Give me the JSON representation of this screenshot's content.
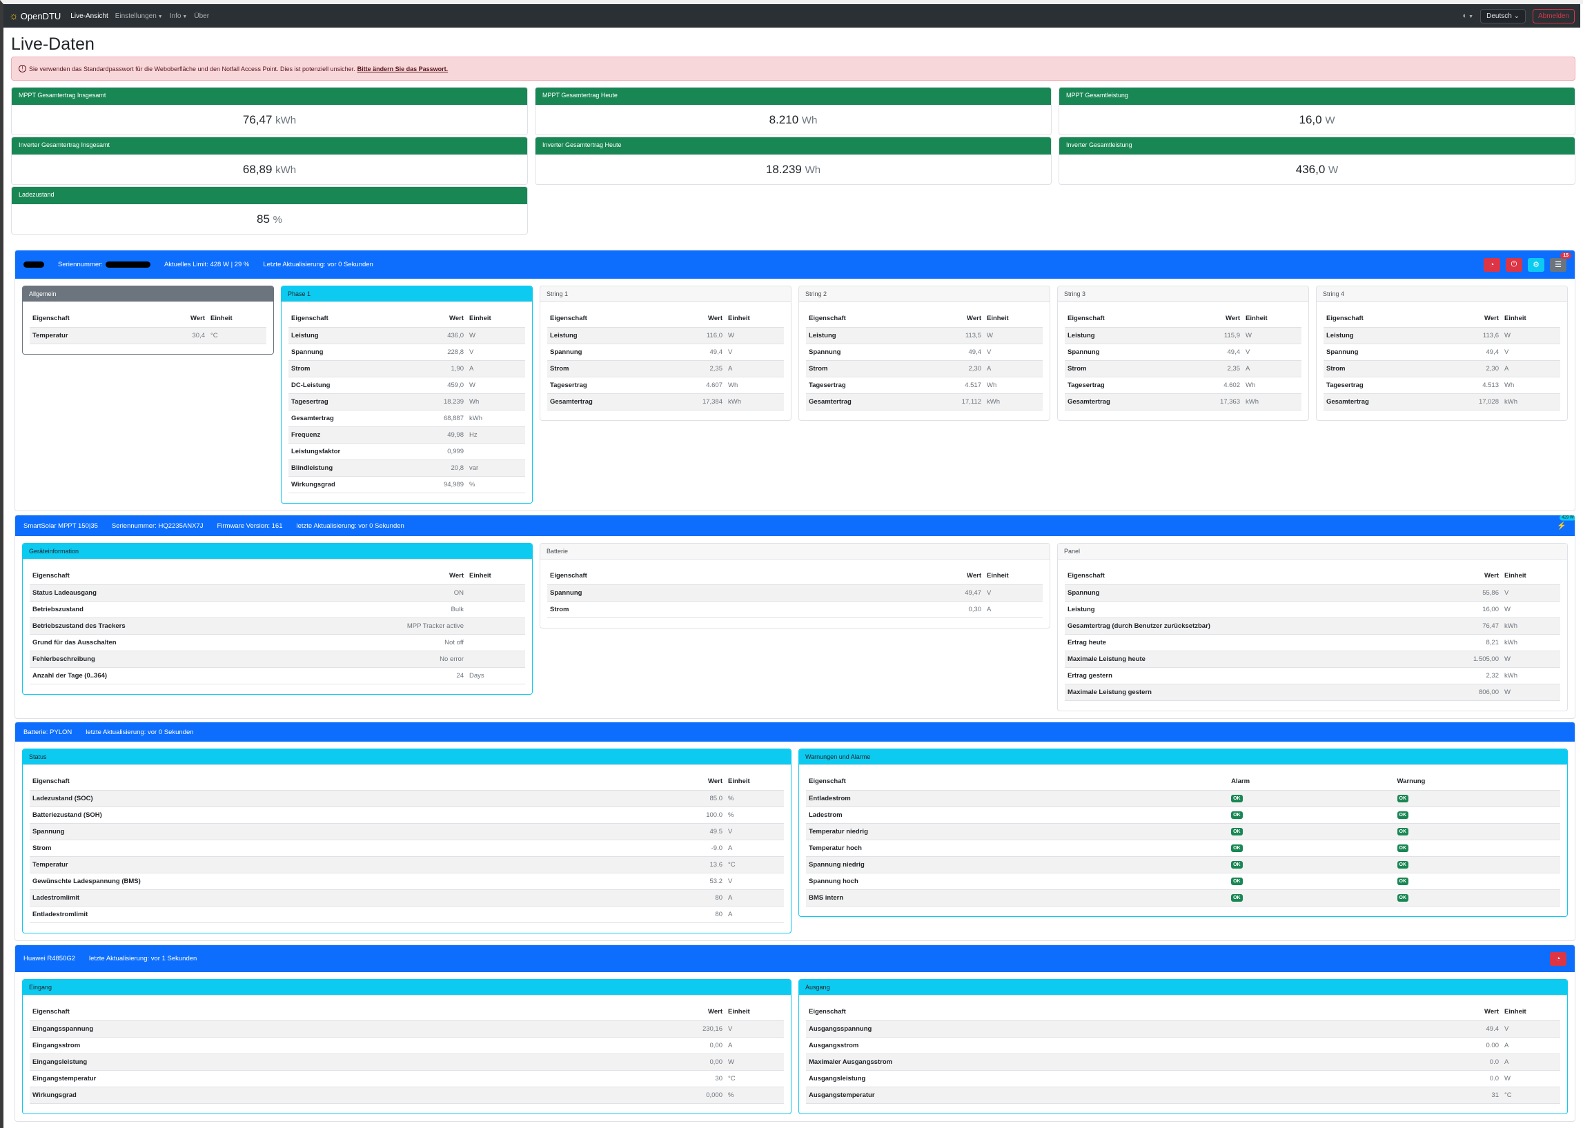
{
  "nav": {
    "brand": "OpenDTU",
    "links": [
      "Live-Ansicht",
      "Einstellungen",
      "Info",
      "Über"
    ],
    "theme_icon": "◐",
    "language": "Deutsch",
    "logout": "Abmelden"
  },
  "page_title": "Live-Daten",
  "alert": {
    "text": "Sie verwenden das Standardpasswort für die Weboberfläche und den Notfall Access Point. Dies ist potenziell unsicher.",
    "link": "Bitte ändern Sie das Passwort."
  },
  "totals": [
    {
      "title": "MPPT Gesamtertrag Insgesamt",
      "value": "76,47",
      "unit": "kWh"
    },
    {
      "title": "MPPT Gesamtertrag Heute",
      "value": "8.210",
      "unit": "Wh"
    },
    {
      "title": "MPPT Gesamtleistung",
      "value": "16,0",
      "unit": "W"
    },
    {
      "title": "Inverter Gesamtertrag Insgesamt",
      "value": "68,89",
      "unit": "kWh"
    },
    {
      "title": "Inverter Gesamtertrag Heute",
      "value": "18.239",
      "unit": "Wh"
    },
    {
      "title": "Inverter Gesamtleistung",
      "value": "436,0",
      "unit": "W"
    },
    {
      "title": "Ladezustand",
      "value": "85",
      "unit": "%"
    }
  ],
  "colors": {
    "primary": "#0d6efd",
    "success": "#198754",
    "info": "#0dcaf0",
    "danger": "#dc3545",
    "secondary": "#6c757d"
  },
  "sections": [
    {
      "id": "inverter",
      "header": [
        "Seriennummer:",
        "Aktuelles Limit: 428 W | 29 %",
        "Letzte Aktualisierung: vor 0 Sekunden"
      ],
      "buttons": [
        {
          "icon": "speedometer-icon",
          "color": "#dc3545"
        },
        {
          "icon": "power-icon",
          "color": "#dc3545"
        },
        {
          "icon": "cpu-icon",
          "color": "#0dcaf0"
        },
        {
          "icon": "journal-icon",
          "color": "#6c757d",
          "badge": "15"
        }
      ],
      "cards": [
        {
          "title": "Allgemein",
          "variant": "gray",
          "columns": [
            "Eigenschaft",
            "Wert",
            "Einheit"
          ],
          "rows": [
            [
              "Temperatur",
              "30,4",
              "°C"
            ]
          ]
        },
        {
          "title": "Phase 1",
          "variant": "cyan",
          "columns": [
            "Eigenschaft",
            "Wert",
            "Einheit"
          ],
          "rows": [
            [
              "Leistung",
              "436,0",
              "W"
            ],
            [
              "Spannung",
              "228,8",
              "V"
            ],
            [
              "Strom",
              "1,90",
              "A"
            ],
            [
              "DC-Leistung",
              "459,0",
              "W"
            ],
            [
              "Tagesertrag",
              "18.239",
              "Wh"
            ],
            [
              "Gesamtertrag",
              "68,887",
              "kWh"
            ],
            [
              "Frequenz",
              "49,98",
              "Hz"
            ],
            [
              "Leistungsfaktor",
              "0,999",
              ""
            ],
            [
              "Blindleistung",
              "20,8",
              "var"
            ],
            [
              "Wirkungsgrad",
              "94,989",
              "%"
            ]
          ]
        },
        {
          "title": "String 1",
          "variant": "light",
          "columns": [
            "Eigenschaft",
            "Wert",
            "Einheit"
          ],
          "rows": [
            [
              "Leistung",
              "116,0",
              "W"
            ],
            [
              "Spannung",
              "49,4",
              "V"
            ],
            [
              "Strom",
              "2,35",
              "A"
            ],
            [
              "Tagesertrag",
              "4.607",
              "Wh"
            ],
            [
              "Gesamtertrag",
              "17,384",
              "kWh"
            ]
          ]
        },
        {
          "title": "String 2",
          "variant": "light",
          "columns": [
            "Eigenschaft",
            "Wert",
            "Einheit"
          ],
          "rows": [
            [
              "Leistung",
              "113,5",
              "W"
            ],
            [
              "Spannung",
              "49,4",
              "V"
            ],
            [
              "Strom",
              "2,30",
              "A"
            ],
            [
              "Tagesertrag",
              "4.517",
              "Wh"
            ],
            [
              "Gesamtertrag",
              "17,112",
              "kWh"
            ]
          ]
        },
        {
          "title": "String 3",
          "variant": "light",
          "columns": [
            "Eigenschaft",
            "Wert",
            "Einheit"
          ],
          "rows": [
            [
              "Leistung",
              "115,9",
              "W"
            ],
            [
              "Spannung",
              "49,4",
              "V"
            ],
            [
              "Strom",
              "2,35",
              "A"
            ],
            [
              "Tagesertrag",
              "4.602",
              "Wh"
            ],
            [
              "Gesamtertrag",
              "17,363",
              "kWh"
            ]
          ]
        },
        {
          "title": "String 4",
          "variant": "light",
          "columns": [
            "Eigenschaft",
            "Wert",
            "Einheit"
          ],
          "rows": [
            [
              "Leistung",
              "113,6",
              "W"
            ],
            [
              "Spannung",
              "49,4",
              "V"
            ],
            [
              "Strom",
              "2,30",
              "A"
            ],
            [
              "Tagesertrag",
              "4.513",
              "Wh"
            ],
            [
              "Gesamtertrag",
              "17,028",
              "kWh"
            ]
          ]
        }
      ]
    },
    {
      "id": "mppt",
      "header": [
        "SmartSolar MPPT 150|35",
        "Seriennummer: HQ2235ANX7J",
        "Firmware Version: 161",
        "letzte Aktualisierung: vor 0 Sekunden"
      ],
      "charger": {
        "icon": "charging-icon",
        "badge": "429 W"
      },
      "cards": [
        {
          "title": "Geräteinformation",
          "variant": "cyan",
          "columns": [
            "Eigenschaft",
            "Wert",
            "Einheit"
          ],
          "rows": [
            [
              "Status Ladeausgang",
              "ON",
              ""
            ],
            [
              "Betriebszustand",
              "Bulk",
              ""
            ],
            [
              "Betriebszustand des Trackers",
              "MPP Tracker active",
              ""
            ],
            [
              "Grund für das Ausschalten",
              "Not off",
              ""
            ],
            [
              "Fehlerbeschreibung",
              "No error",
              ""
            ],
            [
              "Anzahl der Tage (0..364)",
              "24",
              "Days"
            ]
          ]
        },
        {
          "title": "Batterie",
          "variant": "light",
          "columns": [
            "Eigenschaft",
            "Wert",
            "Einheit"
          ],
          "rows": [
            [
              "Spannung",
              "49,47",
              "V"
            ],
            [
              "Strom",
              "0,30",
              "A"
            ]
          ]
        },
        {
          "title": "Panel",
          "variant": "light",
          "columns": [
            "Eigenschaft",
            "Wert",
            "Einheit"
          ],
          "rows": [
            [
              "Spannung",
              "55,86",
              "V"
            ],
            [
              "Leistung",
              "16,00",
              "W"
            ],
            [
              "Gesamtertrag (durch Benutzer zurücksetzbar)",
              "76,47",
              "kWh"
            ],
            [
              "Ertrag heute",
              "8,21",
              "kWh"
            ],
            [
              "Maximale Leistung heute",
              "1.505,00",
              "W"
            ],
            [
              "Ertrag gestern",
              "2,32",
              "kWh"
            ],
            [
              "Maximale Leistung gestern",
              "806,00",
              "W"
            ]
          ]
        }
      ]
    },
    {
      "id": "battery",
      "header": [
        "Batterie: PYLON",
        "letzte Aktualisierung: vor 0 Sekunden"
      ],
      "cards": [
        {
          "title": "Status",
          "variant": "cyan",
          "columns": [
            "Eigenschaft",
            "Wert",
            "Einheit"
          ],
          "rows": [
            [
              "Ladezustand (SOC)",
              "85.0",
              "%"
            ],
            [
              "Batteriezustand (SOH)",
              "100.0",
              "%"
            ],
            [
              "Spannung",
              "49.5",
              "V"
            ],
            [
              "Strom",
              "-9.0",
              "A"
            ],
            [
              "Temperatur",
              "13.6",
              "°C"
            ],
            [
              "Gewünschte Ladespannung (BMS)",
              "53.2",
              "V"
            ],
            [
              "Ladestromlimit",
              "80",
              "A"
            ],
            [
              "Entladestromlimit",
              "80",
              "A"
            ]
          ]
        },
        {
          "title": "Warnungen und Alarme",
          "variant": "cyan",
          "type": "alarms",
          "columns": [
            "Eigenschaft",
            "Alarm",
            "Warnung"
          ],
          "rows": [
            [
              "Entladestrom",
              "OK",
              "OK"
            ],
            [
              "Ladestrom",
              "OK",
              "OK"
            ],
            [
              "Temperatur niedrig",
              "OK",
              "OK"
            ],
            [
              "Temperatur hoch",
              "OK",
              "OK"
            ],
            [
              "Spannung niedrig",
              "OK",
              "OK"
            ],
            [
              "Spannung hoch",
              "OK",
              "OK"
            ],
            [
              "BMS intern",
              "OK",
              "OK"
            ]
          ]
        }
      ]
    },
    {
      "id": "huawei",
      "header": [
        "Huawei R4850G2",
        "letzte Aktualisierung: vor 1 Sekunden"
      ],
      "buttons": [
        {
          "icon": "speedometer-icon",
          "color": "#dc3545"
        }
      ],
      "cards": [
        {
          "title": "Eingang",
          "variant": "cyan",
          "columns": [
            "Eigenschaft",
            "Wert",
            "Einheit"
          ],
          "rows": [
            [
              "Eingangsspannung",
              "230,16",
              "V"
            ],
            [
              "Eingangsstrom",
              "0,00",
              "A"
            ],
            [
              "Eingangsleistung",
              "0,00",
              "W"
            ],
            [
              "Eingangstemperatur",
              "30",
              "°C"
            ],
            [
              "Wirkungsgrad",
              "0,000",
              "%"
            ]
          ]
        },
        {
          "title": "Ausgang",
          "variant": "cyan",
          "columns": [
            "Eigenschaft",
            "Wert",
            "Einheit"
          ],
          "rows": [
            [
              "Ausgangsspannung",
              "49.4",
              "V"
            ],
            [
              "Ausgangsstrom",
              "0.00",
              "A"
            ],
            [
              "Maximaler Ausgangsstrom",
              "0.0",
              "A"
            ],
            [
              "Ausgangsleistung",
              "0.0",
              "W"
            ],
            [
              "Ausgangstemperatur",
              "31",
              "°C"
            ]
          ]
        }
      ]
    }
  ]
}
